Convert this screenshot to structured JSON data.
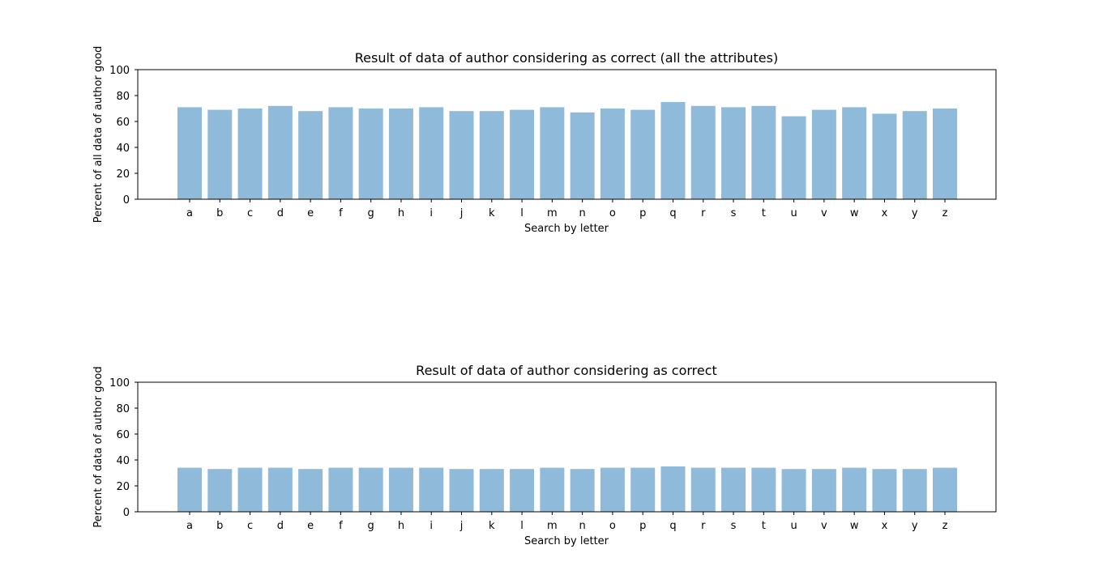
{
  "figure": {
    "background": "#ffffff"
  },
  "chart_data": [
    {
      "type": "bar",
      "title": "Result of data of author considering as correct (all the attributes)",
      "xlabel": "Search by letter",
      "ylabel": "Percent of all data of author good",
      "ylim": [
        0,
        100
      ],
      "yticks": [
        0,
        20,
        40,
        60,
        80,
        100
      ],
      "grid": false,
      "legend": "none",
      "bar_color": "#8fbada",
      "categories": [
        "a",
        "b",
        "c",
        "d",
        "e",
        "f",
        "g",
        "h",
        "i",
        "j",
        "k",
        "l",
        "m",
        "n",
        "o",
        "p",
        "q",
        "r",
        "s",
        "t",
        "u",
        "v",
        "w",
        "x",
        "y",
        "z"
      ],
      "values": [
        71,
        69,
        70,
        72,
        68,
        71,
        70,
        70,
        71,
        68,
        68,
        69,
        71,
        67,
        70,
        69,
        75,
        72,
        71,
        72,
        64,
        69,
        71,
        66,
        68,
        70
      ]
    },
    {
      "type": "bar",
      "title": "Result of data of author considering as correct",
      "xlabel": "Search by letter",
      "ylabel": "Percent of data of author good",
      "ylim": [
        0,
        100
      ],
      "yticks": [
        0,
        20,
        40,
        60,
        80,
        100
      ],
      "grid": false,
      "legend": "none",
      "bar_color": "#8fbada",
      "categories": [
        "a",
        "b",
        "c",
        "d",
        "e",
        "f",
        "g",
        "h",
        "i",
        "j",
        "k",
        "l",
        "m",
        "n",
        "o",
        "p",
        "q",
        "r",
        "s",
        "t",
        "u",
        "v",
        "w",
        "x",
        "y",
        "z"
      ],
      "values": [
        34,
        33,
        34,
        34,
        33,
        34,
        34,
        34,
        34,
        33,
        33,
        33,
        34,
        33,
        34,
        34,
        35,
        34,
        34,
        34,
        33,
        33,
        34,
        33,
        33,
        34
      ]
    }
  ]
}
